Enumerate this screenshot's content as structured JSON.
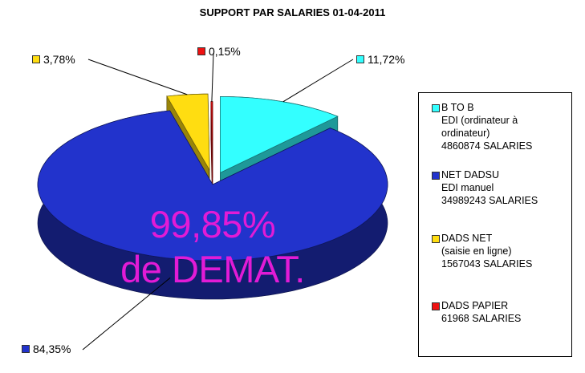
{
  "chart_data": {
    "type": "pie",
    "title": "SUPPORT PAR SALARIES 01-04-2011",
    "slices": [
      {
        "label": "11,72%",
        "value": 11.72,
        "color": "#33ffff",
        "legend": [
          "B TO B",
          "EDI (ordinateur à",
          "ordinateur)",
          "4860874 SALARIES"
        ]
      },
      {
        "label": "84,35%",
        "value": 84.35,
        "color": "#2233cc",
        "legend": [
          "NET DADSU",
          "EDI manuel",
          "34989243 SALARIES"
        ]
      },
      {
        "label": "3,78%",
        "value": 3.78,
        "color": "#ffdd11",
        "legend": [
          "DADS NET",
          "(saisie en ligne)",
          "1567043 SALARIES"
        ]
      },
      {
        "label": "0,15%",
        "value": 0.15,
        "color": "#ee1111",
        "legend": [
          "DADS PAPIER",
          "61968 SALARIES"
        ]
      }
    ],
    "annotation": [
      "99,85%",
      "de DEMAT."
    ],
    "legend_position": "right"
  }
}
